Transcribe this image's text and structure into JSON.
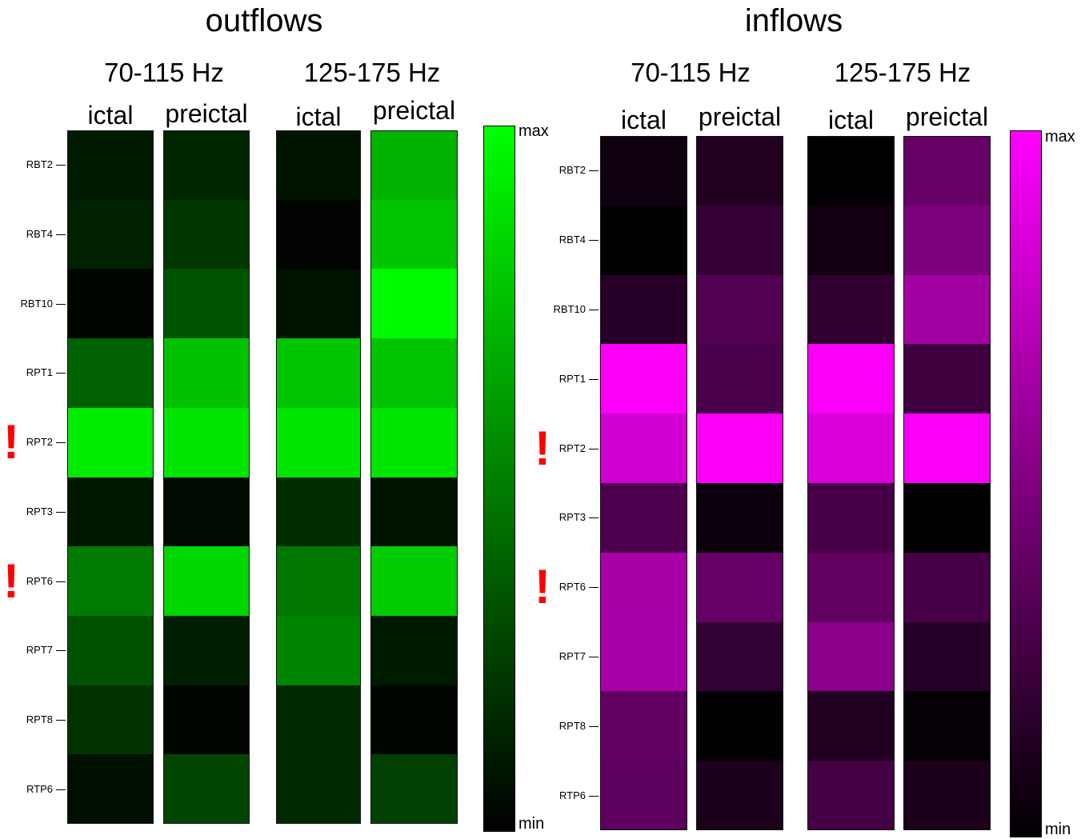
{
  "chart_data": [
    {
      "type": "heatmap",
      "title": "outflows",
      "rows": [
        "RBT2",
        "RBT4",
        "RBT10",
        "RPT1",
        "RPT2",
        "RPT3",
        "RPT6",
        "RPT7",
        "RPT8",
        "RTP6"
      ],
      "groups": [
        {
          "label": "70-115 Hz",
          "columns": [
            {
              "label": "ictal",
              "values": [
                0.1,
                0.13,
                0.02,
                0.38,
                0.92,
                0.09,
                0.48,
                0.32,
                0.2,
                0.06
              ]
            },
            {
              "label": "preictal",
              "values": [
                0.15,
                0.22,
                0.33,
                0.76,
                0.9,
                0.04,
                0.84,
                0.12,
                0.02,
                0.27
              ]
            }
          ]
        },
        {
          "label": "125-175 Hz",
          "columns": [
            {
              "label": "ictal",
              "values": [
                0.08,
                0.01,
                0.07,
                0.77,
                0.9,
                0.18,
                0.47,
                0.52,
                0.16,
                0.16
              ]
            },
            {
              "label": "preictal",
              "values": [
                0.7,
                0.77,
                0.98,
                0.77,
                0.9,
                0.07,
                0.8,
                0.11,
                0.02,
                0.25
              ]
            }
          ]
        }
      ],
      "colorbar": {
        "max_label": "max",
        "min_label": "min",
        "min_color": "#000000",
        "max_color": "#00ff00"
      },
      "highlighted_rows": [
        "RPT2",
        "RPT6"
      ]
    },
    {
      "type": "heatmap",
      "title": "inflows",
      "rows": [
        "RBT2",
        "RBT4",
        "RBT10",
        "RPT1",
        "RPT2",
        "RPT3",
        "RPT6",
        "RPT7",
        "RPT8",
        "RTP6"
      ],
      "groups": [
        {
          "label": "70-115 Hz",
          "columns": [
            {
              "label": "ictal",
              "values": [
                0.06,
                0.01,
                0.15,
                0.98,
                0.82,
                0.3,
                0.65,
                0.66,
                0.38,
                0.37
              ]
            },
            {
              "label": "preictal",
              "values": [
                0.13,
                0.21,
                0.32,
                0.29,
                0.98,
                0.05,
                0.4,
                0.2,
                0.01,
                0.11
              ]
            }
          ]
        },
        {
          "label": "125-175 Hz",
          "columns": [
            {
              "label": "ictal",
              "values": [
                0.01,
                0.07,
                0.19,
                0.98,
                0.85,
                0.28,
                0.38,
                0.55,
                0.13,
                0.27
              ]
            },
            {
              "label": "preictal",
              "values": [
                0.4,
                0.49,
                0.64,
                0.25,
                0.98,
                0.01,
                0.28,
                0.15,
                0.02,
                0.11
              ]
            }
          ]
        }
      ],
      "colorbar": {
        "max_label": "max",
        "min_label": "min",
        "min_color": "#000000",
        "max_color": "#ff00ff"
      },
      "highlighted_rows": [
        "RPT2",
        "RPT6"
      ]
    }
  ],
  "highlight_marker": "!",
  "highlight_color": "#ff0000"
}
